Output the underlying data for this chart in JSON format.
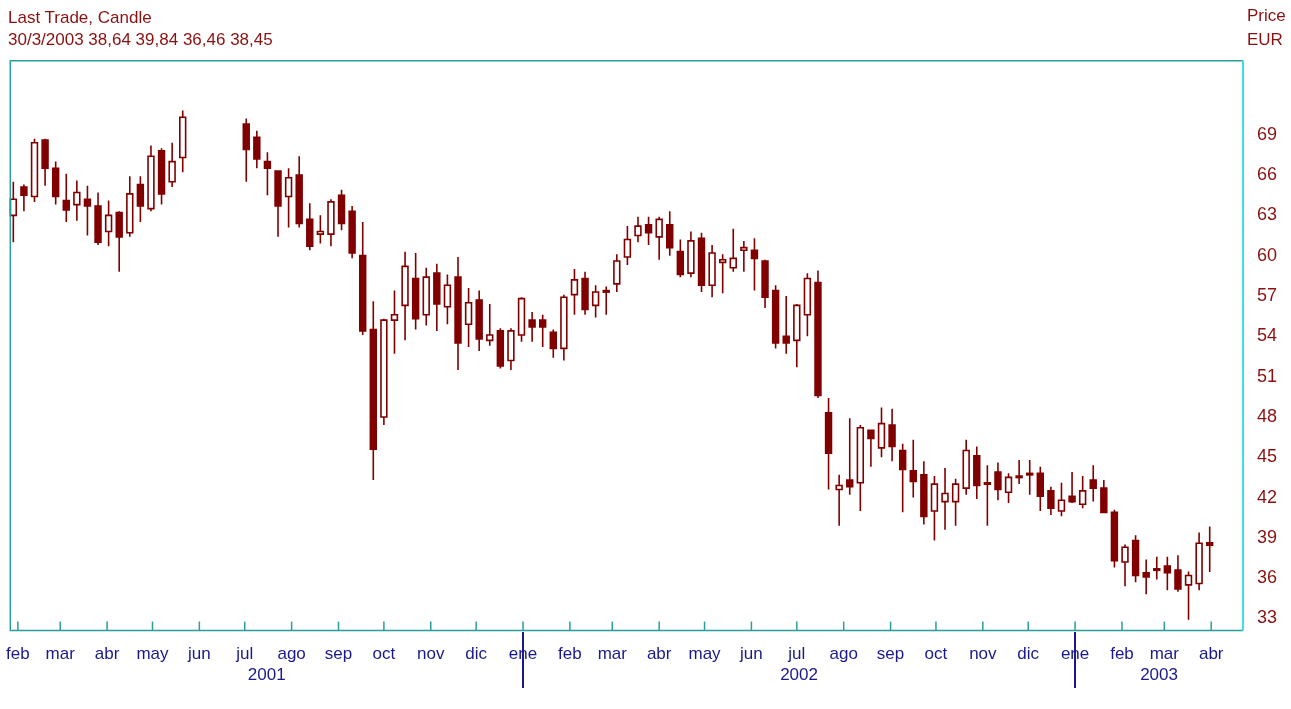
{
  "chart_data": {
    "type": "candlestick",
    "title": "Last Trade, Candle",
    "subtitle": "30/3/2003 38,64 39,84 36,46 38,45",
    "ylabel": "Price EUR",
    "color": "#800000",
    "x": [
      "2001-01-29",
      "2001-02-05",
      "2001-02-12",
      "2001-02-19",
      "2001-02-26",
      "2001-03-05",
      "2001-03-12",
      "2001-03-19",
      "2001-03-26",
      "2001-04-02",
      "2001-04-09",
      "2001-04-16",
      "2001-04-23",
      "2001-04-30",
      "2001-05-07",
      "2001-05-14",
      "2001-05-21",
      "2001-07-02",
      "2001-07-09",
      "2001-07-16",
      "2001-07-23",
      "2001-07-30",
      "2001-08-06",
      "2001-08-13",
      "2001-08-20",
      "2001-08-27",
      "2001-09-03",
      "2001-09-10",
      "2001-09-17",
      "2001-09-24",
      "2001-10-01",
      "2001-10-08",
      "2001-10-15",
      "2001-10-22",
      "2001-10-29",
      "2001-11-05",
      "2001-11-12",
      "2001-11-19",
      "2001-11-26",
      "2001-12-03",
      "2001-12-10",
      "2001-12-17",
      "2001-12-24",
      "2001-12-31",
      "2002-01-07",
      "2002-01-14",
      "2002-01-21",
      "2002-01-28",
      "2002-02-04",
      "2002-02-11",
      "2002-02-18",
      "2002-02-25",
      "2002-03-04",
      "2002-03-11",
      "2002-03-18",
      "2002-03-25",
      "2002-04-01",
      "2002-04-08",
      "2002-04-15",
      "2002-04-22",
      "2002-04-29",
      "2002-05-06",
      "2002-05-13",
      "2002-05-20",
      "2002-05-27",
      "2002-06-03",
      "2002-06-10",
      "2002-06-17",
      "2002-06-24",
      "2002-07-01",
      "2002-07-08",
      "2002-07-15",
      "2002-07-22",
      "2002-07-29",
      "2002-08-05",
      "2002-08-12",
      "2002-08-19",
      "2002-08-26",
      "2002-09-02",
      "2002-09-09",
      "2002-09-16",
      "2002-09-23",
      "2002-09-30",
      "2002-10-07",
      "2002-10-14",
      "2002-10-21",
      "2002-10-28",
      "2002-11-04",
      "2002-11-11",
      "2002-11-18",
      "2002-11-25",
      "2002-12-02",
      "2002-12-09",
      "2002-12-16",
      "2002-12-23",
      "2002-12-30",
      "2003-01-06",
      "2003-01-13",
      "2003-01-20",
      "2003-01-27",
      "2003-02-03",
      "2003-02-10",
      "2003-02-17",
      "2003-02-24",
      "2003-03-03",
      "2003-03-10",
      "2003-03-17",
      "2003-03-24",
      "2003-03-31"
    ],
    "ohlc": [
      [
        63.0,
        65.5,
        61.0,
        64.2
      ],
      [
        65.1,
        65.3,
        63.3,
        64.5
      ],
      [
        64.4,
        68.7,
        64.0,
        68.4
      ],
      [
        68.6,
        68.7,
        65.2,
        66.5
      ],
      [
        66.5,
        67.0,
        63.8,
        64.4
      ],
      [
        64.1,
        66.1,
        62.5,
        63.4
      ],
      [
        63.8,
        65.6,
        62.6,
        64.7
      ],
      [
        64.2,
        65.2,
        61.5,
        63.7
      ],
      [
        63.7,
        64.7,
        60.8,
        61.0
      ],
      [
        61.8,
        64.1,
        60.7,
        63.0
      ],
      [
        63.2,
        63.3,
        58.8,
        61.4
      ],
      [
        61.7,
        65.9,
        61.4,
        64.6
      ],
      [
        65.3,
        65.9,
        62.5,
        63.7
      ],
      [
        63.5,
        68.2,
        63.3,
        67.4
      ],
      [
        67.8,
        68.0,
        63.8,
        64.6
      ],
      [
        65.5,
        68.4,
        65.1,
        67.0
      ],
      [
        67.3,
        70.8,
        66.2,
        70.3
      ],
      [
        69.8,
        70.2,
        65.5,
        67.9
      ],
      [
        68.8,
        69.3,
        66.5,
        67.2
      ],
      [
        67.0,
        67.7,
        64.5,
        66.5
      ],
      [
        66.3,
        66.3,
        61.4,
        63.7
      ],
      [
        64.4,
        66.5,
        62.1,
        65.8
      ],
      [
        66.0,
        67.4,
        62.1,
        62.4
      ],
      [
        62.7,
        63.9,
        60.4,
        60.7
      ],
      [
        61.6,
        63.0,
        60.9,
        61.8
      ],
      [
        61.6,
        64.2,
        60.7,
        64.0
      ],
      [
        64.5,
        64.9,
        61.9,
        62.4
      ],
      [
        63.3,
        63.7,
        59.8,
        60.2
      ],
      [
        60.0,
        62.5,
        54.1,
        54.4
      ],
      [
        54.5,
        56.6,
        43.3,
        45.6
      ],
      [
        48.0,
        55.3,
        47.4,
        55.2
      ],
      [
        55.2,
        57.4,
        52.7,
        55.6
      ],
      [
        56.3,
        60.3,
        53.7,
        59.2
      ],
      [
        58.3,
        60.2,
        54.5,
        55.3
      ],
      [
        55.6,
        59.1,
        54.8,
        58.4
      ],
      [
        58.7,
        59.4,
        54.4,
        56.4
      ],
      [
        56.2,
        58.6,
        54.9,
        57.8
      ],
      [
        58.4,
        59.9,
        51.5,
        53.5
      ],
      [
        54.9,
        57.6,
        53.2,
        56.5
      ],
      [
        56.7,
        57.4,
        52.9,
        53.8
      ],
      [
        53.7,
        56.4,
        53.3,
        54.1
      ],
      [
        54.4,
        54.6,
        51.6,
        51.8
      ],
      [
        52.2,
        54.6,
        51.5,
        54.4
      ],
      [
        54.1,
        56.9,
        53.6,
        56.8
      ],
      [
        55.2,
        55.8,
        53.6,
        54.7
      ],
      [
        55.2,
        55.6,
        53.2,
        54.7
      ],
      [
        54.3,
        54.5,
        52.4,
        53.1
      ],
      [
        53.1,
        57.1,
        52.2,
        56.9
      ],
      [
        57.1,
        59.0,
        55.6,
        58.2
      ],
      [
        58.3,
        58.8,
        55.6,
        56.0
      ],
      [
        56.3,
        57.8,
        55.4,
        57.3
      ],
      [
        57.4,
        57.7,
        55.6,
        57.4
      ],
      [
        57.9,
        60.1,
        57.3,
        59.6
      ],
      [
        59.9,
        62.2,
        59.3,
        61.2
      ],
      [
        61.5,
        62.9,
        61.0,
        62.2
      ],
      [
        62.3,
        62.9,
        60.8,
        61.7
      ],
      [
        61.4,
        62.9,
        59.7,
        62.7
      ],
      [
        62.3,
        63.3,
        60.0,
        60.6
      ],
      [
        60.3,
        61.2,
        58.4,
        58.6
      ],
      [
        58.7,
        61.8,
        58.4,
        61.1
      ],
      [
        61.3,
        61.7,
        57.3,
        57.8
      ],
      [
        57.8,
        60.8,
        56.9,
        60.2
      ],
      [
        59.5,
        60.1,
        57.2,
        59.7
      ],
      [
        59.1,
        62.0,
        58.8,
        59.8
      ],
      [
        60.4,
        61.1,
        58.8,
        60.6
      ],
      [
        60.4,
        61.3,
        57.4,
        59.8
      ],
      [
        59.6,
        59.7,
        56.1,
        56.9
      ],
      [
        57.4,
        57.8,
        53.1,
        53.5
      ],
      [
        54.0,
        57.0,
        52.7,
        53.5
      ],
      [
        53.7,
        56.4,
        51.7,
        56.3
      ],
      [
        55.6,
        58.7,
        54.0,
        58.3
      ],
      [
        58.0,
        58.9,
        49.4,
        49.6
      ],
      [
        48.3,
        49.4,
        42.6,
        45.3
      ],
      [
        42.6,
        43.7,
        39.9,
        42.9
      ],
      [
        43.3,
        47.9,
        42.2,
        42.8
      ],
      [
        43.1,
        47.4,
        41.0,
        47.2
      ],
      [
        47.0,
        47.0,
        44.3,
        46.4
      ],
      [
        45.7,
        48.7,
        45.0,
        47.5
      ],
      [
        47.4,
        48.6,
        44.7,
        45.8
      ],
      [
        45.5,
        46.0,
        40.9,
        44.1
      ],
      [
        44.0,
        46.3,
        42.0,
        43.2
      ],
      [
        43.7,
        44.7,
        40.0,
        40.6
      ],
      [
        41.0,
        43.6,
        38.8,
        43.0
      ],
      [
        41.7,
        44.2,
        39.6,
        42.3
      ],
      [
        41.7,
        43.4,
        39.9,
        43.0
      ],
      [
        42.7,
        46.3,
        42.2,
        45.5
      ],
      [
        45.1,
        45.8,
        41.9,
        42.9
      ],
      [
        43.1,
        44.4,
        39.9,
        43.1
      ],
      [
        43.9,
        44.6,
        41.8,
        42.6
      ],
      [
        42.4,
        43.8,
        41.6,
        43.5
      ],
      [
        43.5,
        44.8,
        43.0,
        43.6
      ],
      [
        43.8,
        44.8,
        42.2,
        43.7
      ],
      [
        43.8,
        44.3,
        41.0,
        42.1
      ],
      [
        42.5,
        42.8,
        40.7,
        41.2
      ],
      [
        41.0,
        43.1,
        40.6,
        41.8
      ],
      [
        42.1,
        43.9,
        41.6,
        41.7
      ],
      [
        41.5,
        43.6,
        41.2,
        42.5
      ],
      [
        43.3,
        44.4,
        41.7,
        42.7
      ],
      [
        42.7,
        43.3,
        40.9,
        40.9
      ],
      [
        40.9,
        41.1,
        36.8,
        37.3
      ],
      [
        37.2,
        38.5,
        35.4,
        38.3
      ],
      [
        38.8,
        39.2,
        35.7,
        36.2
      ],
      [
        36.4,
        37.4,
        34.8,
        36.1
      ],
      [
        36.6,
        37.6,
        35.9,
        36.7
      ],
      [
        36.9,
        37.6,
        35.1,
        36.4
      ],
      [
        36.6,
        37.7,
        35.0,
        35.2
      ],
      [
        35.5,
        36.5,
        32.9,
        36.2
      ],
      [
        35.6,
        39.4,
        35.1,
        38.6
      ],
      [
        38.64,
        39.84,
        36.46,
        38.45
      ]
    ],
    "xlim": [
      "2001-01-27",
      "2003-04-22"
    ],
    "xticks": [
      {
        "value": "2001-02-01",
        "label": "feb"
      },
      {
        "value": "2001-03-01",
        "label": "mar"
      },
      {
        "value": "2001-04-01",
        "label": "abr"
      },
      {
        "value": "2001-05-01",
        "label": "may"
      },
      {
        "value": "2001-06-01",
        "label": "jun"
      },
      {
        "value": "2001-07-01",
        "label": "jul"
      },
      {
        "value": "2001-08-01",
        "label": "ago"
      },
      {
        "value": "2001-09-01",
        "label": "sep"
      },
      {
        "value": "2001-10-01",
        "label": "oct"
      },
      {
        "value": "2001-11-01",
        "label": "nov"
      },
      {
        "value": "2001-12-01",
        "label": "dic"
      },
      {
        "value": "2002-01-01",
        "label": "ene"
      },
      {
        "value": "2002-02-01",
        "label": "feb"
      },
      {
        "value": "2002-03-01",
        "label": "mar"
      },
      {
        "value": "2002-04-01",
        "label": "abr"
      },
      {
        "value": "2002-05-01",
        "label": "may"
      },
      {
        "value": "2002-06-01",
        "label": "jun"
      },
      {
        "value": "2002-07-01",
        "label": "jul"
      },
      {
        "value": "2002-08-01",
        "label": "ago"
      },
      {
        "value": "2002-09-01",
        "label": "sep"
      },
      {
        "value": "2002-10-01",
        "label": "oct"
      },
      {
        "value": "2002-11-01",
        "label": "nov"
      },
      {
        "value": "2002-12-01",
        "label": "dic"
      },
      {
        "value": "2003-01-01",
        "label": "ene"
      },
      {
        "value": "2003-02-01",
        "label": "feb"
      },
      {
        "value": "2003-03-01",
        "label": "mar"
      },
      {
        "value": "2003-04-01",
        "label": "abr"
      }
    ],
    "ylim": [
      32.1,
      74.5
    ],
    "yticks": [
      33,
      36,
      39,
      42,
      45,
      48,
      51,
      54,
      57,
      60,
      63,
      66,
      69
    ],
    "annotations": [
      "2001",
      "2002",
      "2003"
    ]
  }
}
